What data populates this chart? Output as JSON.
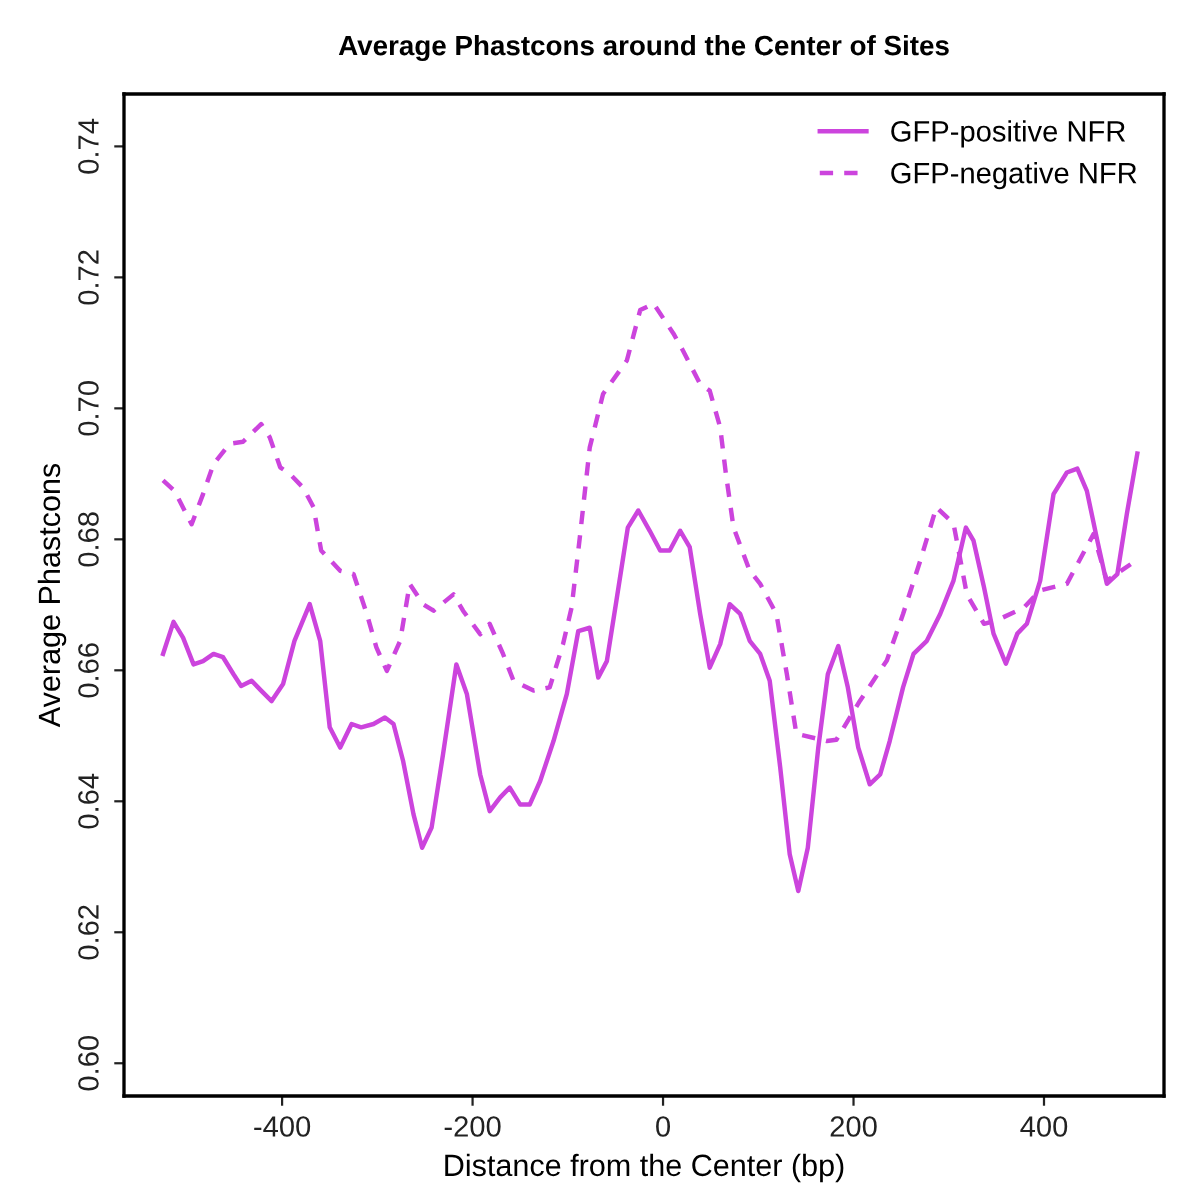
{
  "chart_data": {
    "type": "line",
    "title": "Average Phastcons around the Center of Sites",
    "xlabel": "Distance from the Center (bp)",
    "ylabel": "Average Phastcons",
    "xlim": [
      -566,
      526
    ],
    "ylim": [
      0.595,
      0.748
    ],
    "xticks": [
      -400,
      -200,
      0,
      200,
      400
    ],
    "yticks": [
      {
        "value": 0.6,
        "label": "0.60"
      },
      {
        "value": 0.62,
        "label": "0.62"
      },
      {
        "value": 0.64,
        "label": "0.64"
      },
      {
        "value": 0.66,
        "label": "0.66"
      },
      {
        "value": 0.68,
        "label": "0.68"
      },
      {
        "value": 0.7,
        "label": "0.70"
      },
      {
        "value": 0.72,
        "label": "0.72"
      },
      {
        "value": 0.74,
        "label": "0.74"
      }
    ],
    "grid": false,
    "legend": "top right",
    "marker": "none",
    "series": [
      {
        "name": "GFP-positive NFR",
        "color": "#cc44dd",
        "line_style": "solid",
        "x": [
          -525,
          -514,
          -504,
          -493,
          -483,
          -472,
          -462,
          -451,
          -443,
          -432,
          -422,
          -411,
          -399,
          -387,
          -371,
          -360,
          -350,
          -339,
          -327,
          -317,
          -304,
          -292,
          -283,
          -273,
          -262,
          -253,
          -243,
          -231,
          -217,
          -206,
          -192,
          -182,
          -171,
          -161,
          -150,
          -140,
          -129,
          -115,
          -101,
          -89,
          -77,
          -68,
          -59,
          -49,
          -37,
          -26,
          -14,
          -3,
          7,
          18,
          28,
          39,
          49,
          60,
          70,
          81,
          91,
          102,
          112,
          123,
          133,
          142,
          152,
          163,
          173,
          184,
          194,
          205,
          217,
          228,
          238,
          252,
          263,
          277,
          291,
          305,
          318,
          326,
          337,
          347,
          360,
          372,
          382,
          396,
          410,
          424,
          435,
          445,
          456,
          466,
          477,
          487,
          498
        ],
        "values": [
          0.6625,
          0.6674,
          0.665,
          0.6609,
          0.6614,
          0.6625,
          0.662,
          0.6594,
          0.6576,
          0.6584,
          0.6569,
          0.6553,
          0.6579,
          0.6645,
          0.6701,
          0.6645,
          0.6513,
          0.6482,
          0.6518,
          0.6513,
          0.6518,
          0.6528,
          0.6518,
          0.6462,
          0.638,
          0.6329,
          0.636,
          0.6472,
          0.6609,
          0.6564,
          0.6441,
          0.6385,
          0.6406,
          0.6421,
          0.6395,
          0.6395,
          0.6431,
          0.6492,
          0.6564,
          0.666,
          0.6665,
          0.6589,
          0.6614,
          0.6706,
          0.6818,
          0.6844,
          0.6813,
          0.6783,
          0.6783,
          0.6813,
          0.6788,
          0.6686,
          0.6604,
          0.664,
          0.6701,
          0.6686,
          0.6645,
          0.6625,
          0.6584,
          0.6452,
          0.6319,
          0.6263,
          0.6329,
          0.6482,
          0.6594,
          0.6637,
          0.6574,
          0.6482,
          0.6426,
          0.6441,
          0.6492,
          0.6574,
          0.6625,
          0.6645,
          0.6686,
          0.6737,
          0.6818,
          0.6798,
          0.6727,
          0.6656,
          0.661,
          0.6656,
          0.6671,
          0.6737,
          0.6869,
          0.6902,
          0.6908,
          0.6874,
          0.6798,
          0.6732,
          0.6747,
          0.6839,
          0.6931
        ]
      },
      {
        "name": "GFP-negative NFR",
        "color": "#cc44dd",
        "line_style": "dashed",
        "x": [
          -525,
          -513,
          -495,
          -483,
          -472,
          -455,
          -441,
          -422,
          -413,
          -402,
          -392,
          -378,
          -367,
          -359,
          -339,
          -325,
          -311,
          -301,
          -290,
          -276,
          -266,
          -252,
          -241,
          -220,
          -210,
          -192,
          -182,
          -168,
          -157,
          -136,
          -119,
          -105,
          -96,
          -87,
          -77,
          -63,
          -38,
          -24,
          -10,
          11,
          21,
          39,
          49,
          60,
          66,
          74,
          91,
          102,
          119,
          130,
          140,
          172,
          182,
          207,
          235,
          252,
          270,
          287,
          305,
          319,
          337,
          350,
          379,
          396,
          424,
          452,
          466,
          491
        ],
        "values": [
          0.689,
          0.6874,
          0.6823,
          0.6869,
          0.6915,
          0.6946,
          0.6949,
          0.6976,
          0.6956,
          0.691,
          0.69,
          0.6879,
          0.6849,
          0.6783,
          0.6752,
          0.6747,
          0.6686,
          0.6635,
          0.6599,
          0.6645,
          0.6732,
          0.6701,
          0.6691,
          0.6716,
          0.6691,
          0.6655,
          0.6671,
          0.6625,
          0.6584,
          0.6569,
          0.6574,
          0.664,
          0.6696,
          0.6808,
          0.694,
          0.7022,
          0.7073,
          0.715,
          0.716,
          0.7114,
          0.7088,
          0.7037,
          0.7027,
          0.6971,
          0.69,
          0.6818,
          0.6752,
          0.6732,
          0.6686,
          0.6594,
          0.6503,
          0.6492,
          0.6494,
          0.6554,
          0.6615,
          0.6686,
          0.6767,
          0.6849,
          0.6824,
          0.6716,
          0.6671,
          0.6676,
          0.6696,
          0.6722,
          0.6732,
          0.6808,
          0.6737,
          0.6762
        ]
      }
    ]
  }
}
